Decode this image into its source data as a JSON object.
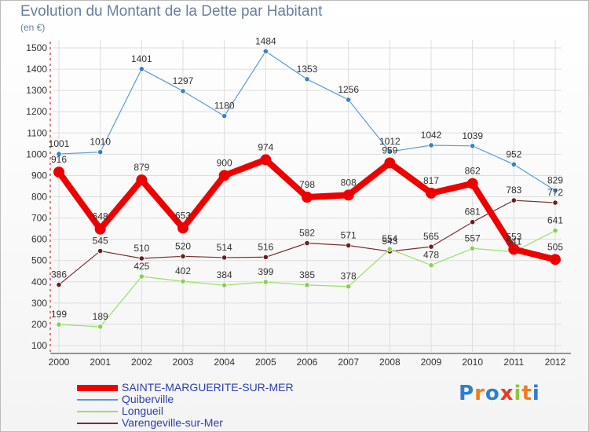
{
  "header": {
    "title": "Evolution du Montant de la Dette par Habitant",
    "subtitle": "(en €)"
  },
  "logo": {
    "text": "Proxiti",
    "letters": [
      "P",
      "r",
      "o",
      "x",
      "i",
      "t",
      "i"
    ],
    "colors": [
      "#2d7fd1",
      "#f07c1e",
      "#2d7fd1",
      "#e23c26",
      "#8cc63f",
      "#f07c1e",
      "#2d7fd1"
    ]
  },
  "chart_data": {
    "type": "line",
    "title": "Evolution du Montant de la Dette par Habitant",
    "subtitle": "(en €)",
    "xlabel": "",
    "ylabel": "",
    "x": [
      "2000",
      "2001",
      "2002",
      "2003",
      "2004",
      "2005",
      "2006",
      "2007",
      "2008",
      "2009",
      "2010",
      "2011",
      "2012"
    ],
    "ylim": [
      100,
      1500
    ],
    "yticks": [
      100,
      200,
      300,
      400,
      500,
      600,
      700,
      800,
      900,
      1000,
      1100,
      1200,
      1300,
      1400,
      1500
    ],
    "grid": true,
    "legend_position": "bottom",
    "series": [
      {
        "name": "SAINTE-MARGUERITE-SUR-MER",
        "color": "#ee0000",
        "values": [
          916,
          648,
          879,
          653,
          900,
          974,
          798,
          808,
          959,
          817,
          862,
          553,
          505
        ]
      },
      {
        "name": "Quiberville",
        "color": "#5b9bd5",
        "values": [
          1001,
          1010,
          1401,
          1297,
          1180,
          1484,
          1353,
          1256,
          1012,
          1042,
          1039,
          952,
          829
        ]
      },
      {
        "name": "Longueil",
        "color": "#99e066",
        "values": [
          199,
          189,
          425,
          402,
          384,
          399,
          385,
          378,
          554,
          478,
          557,
          541,
          641
        ]
      },
      {
        "name": "Varengeville-sur-Mer",
        "color": "#7a2e2e",
        "values": [
          386,
          545,
          510,
          520,
          514,
          516,
          582,
          571,
          543,
          565,
          681,
          783,
          772
        ]
      }
    ]
  }
}
